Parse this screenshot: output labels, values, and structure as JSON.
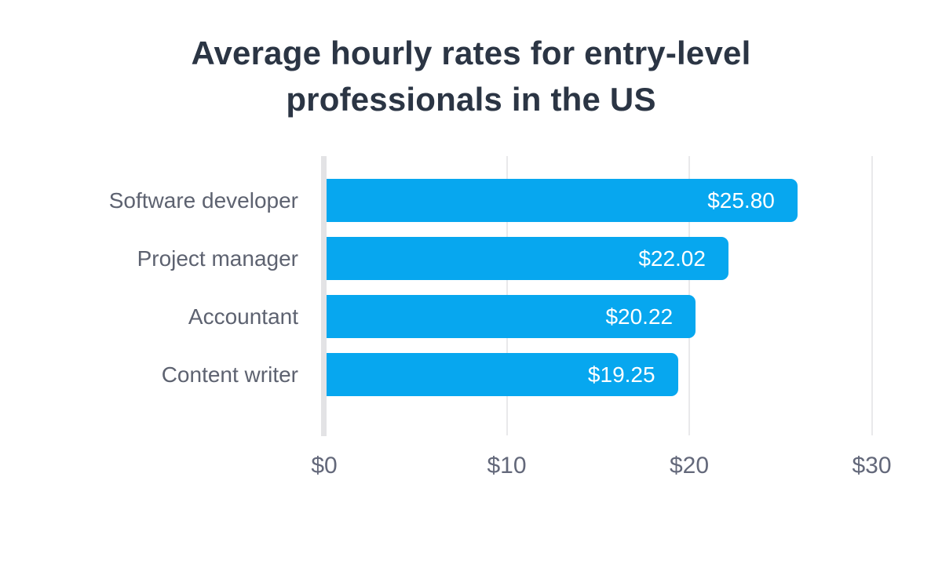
{
  "title": {
    "full": "Average hourly rates for entry-level professionals in the US",
    "lines": [
      "Average hourly rates for entry-level",
      "professionals in the US"
    ]
  },
  "chart_data": {
    "type": "bar",
    "orientation": "horizontal",
    "title": "Average hourly rates for entry-level professionals in the US",
    "categories": [
      "Software developer",
      "Project manager",
      "Accountant",
      "Content writer"
    ],
    "values": [
      25.8,
      22.02,
      20.22,
      19.25
    ],
    "value_labels": [
      "$25.80",
      "$22.02",
      "$20.22",
      "$19.25"
    ],
    "xlabel": "",
    "ylabel": "",
    "x_ticks": [
      {
        "value": 0,
        "label": "$0"
      },
      {
        "value": 10,
        "label": "$10"
      },
      {
        "value": 20,
        "label": "$20"
      },
      {
        "value": 30,
        "label": "$30"
      }
    ],
    "xlim": [
      0,
      31
    ],
    "grid": true,
    "legend": false,
    "colors": {
      "bar": "#07a7ef",
      "value_label": "#ffffff",
      "category_label": "#5d6270",
      "tick_label": "#63687a",
      "gridline": "#e9e9eb",
      "baseline": "#e3e3e5",
      "title": "#2b3544",
      "background": "#ffffff"
    }
  }
}
